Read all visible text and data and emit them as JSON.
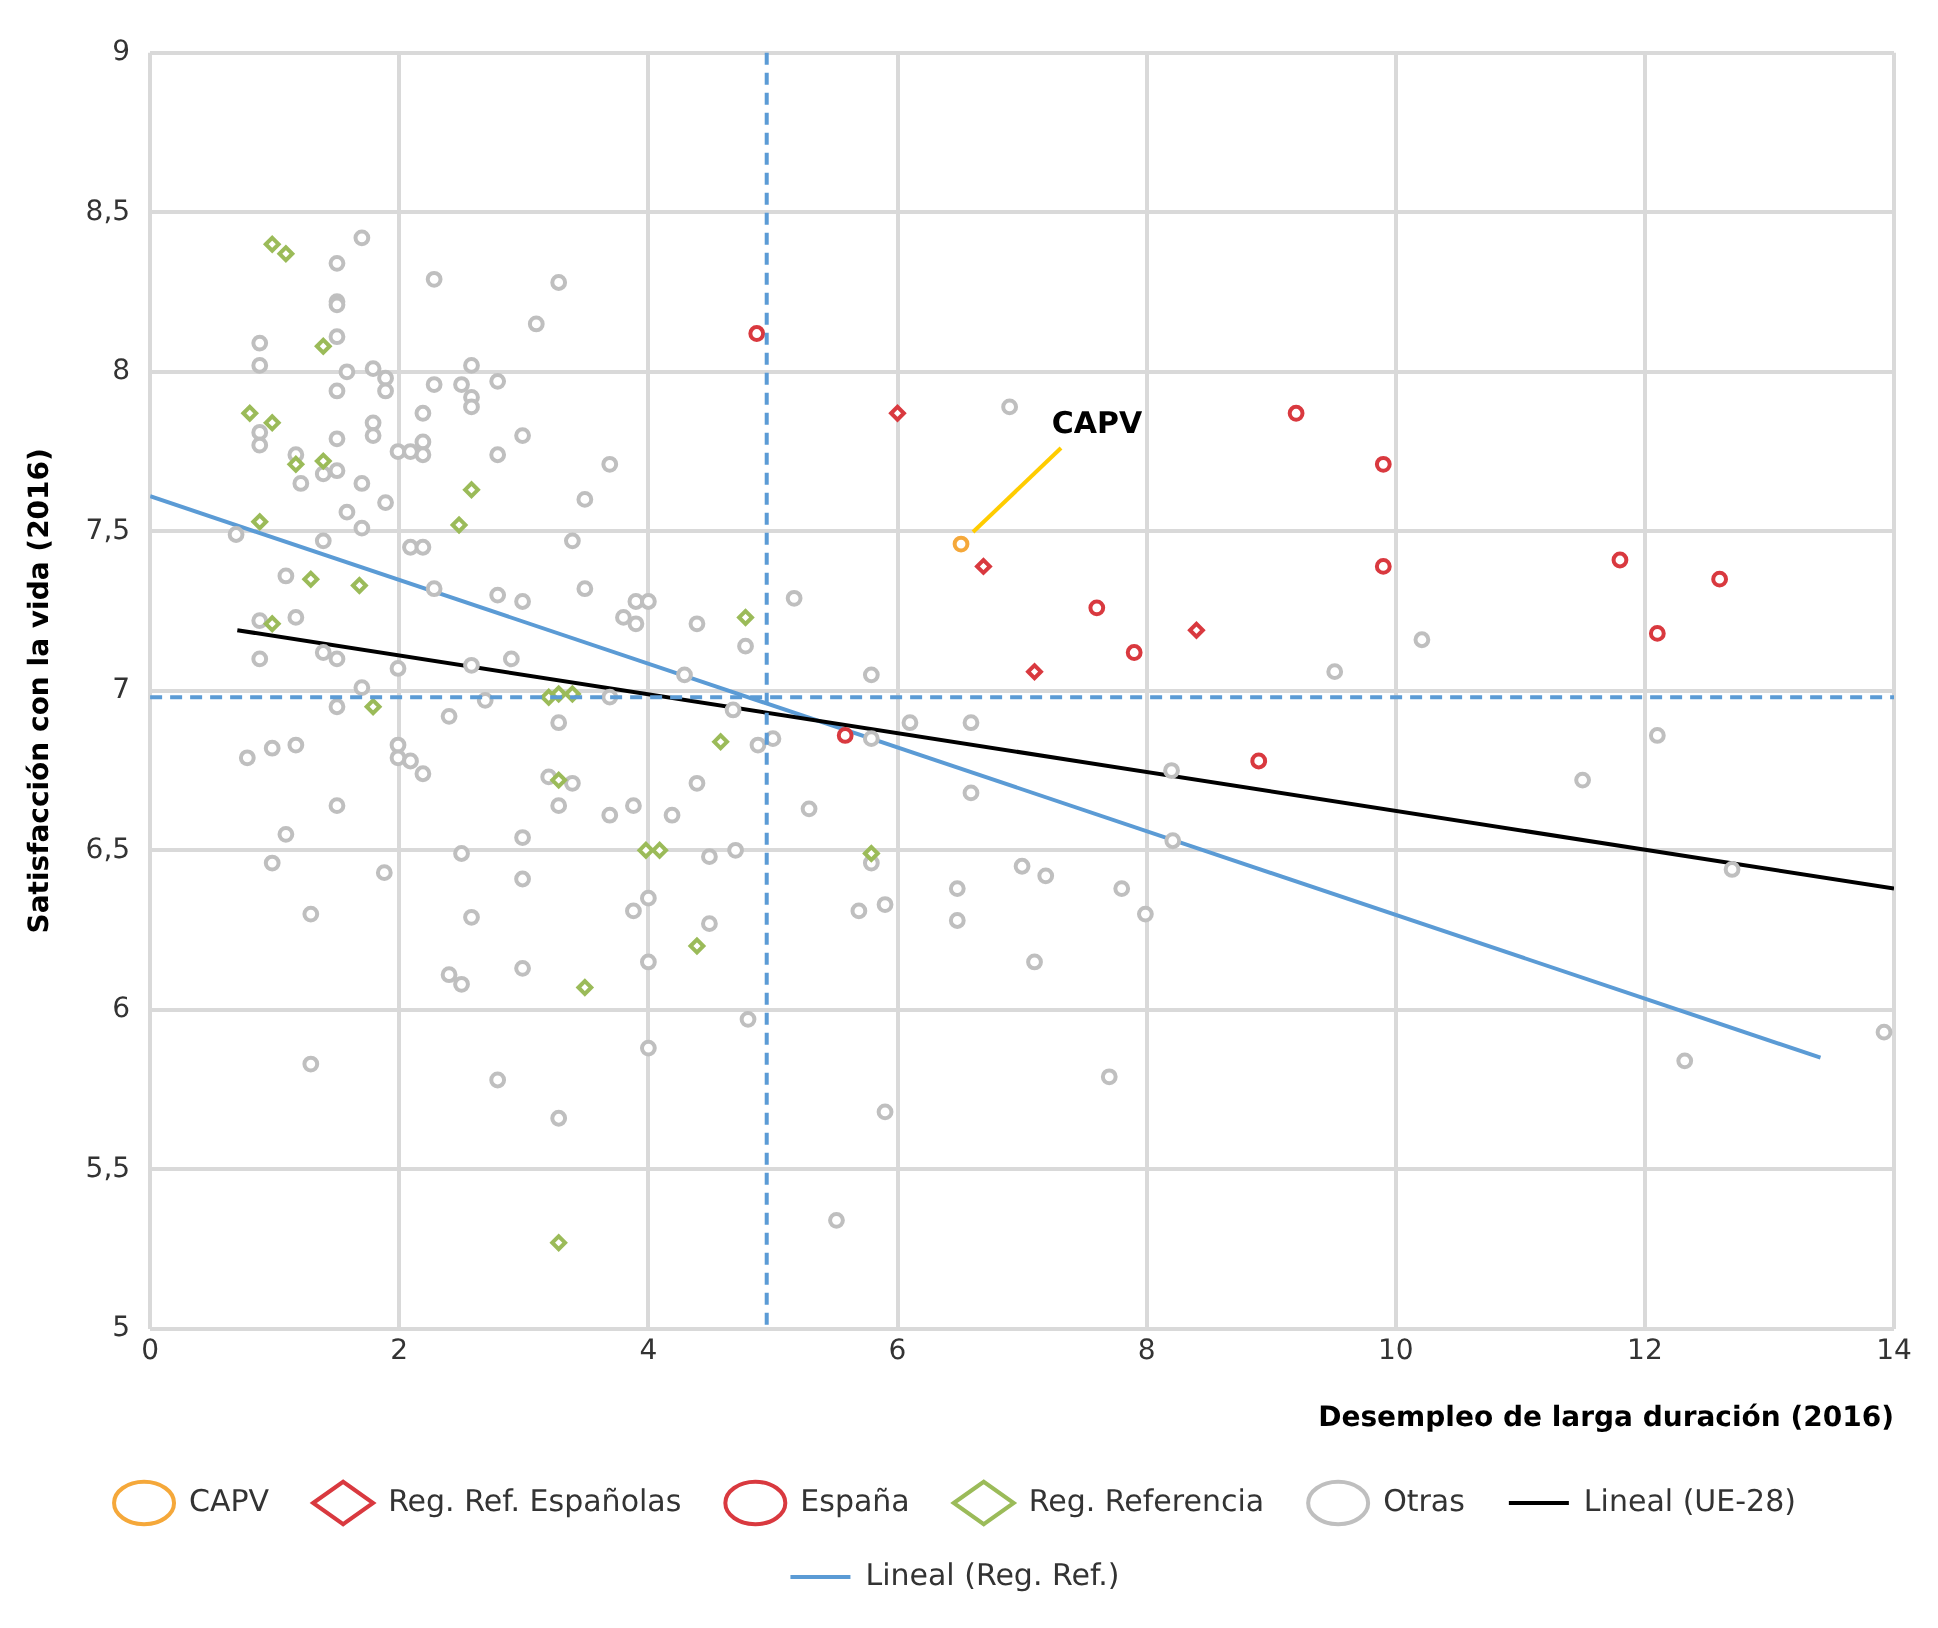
{
  "chart_data": {
    "type": "scatter",
    "xlabel": "Desempleo de larga duración (2016)",
    "ylabel": "Satisfacción con la vida (2016)",
    "xlim": [
      0,
      14
    ],
    "xticks": [
      0,
      2,
      4,
      6,
      8,
      10,
      12,
      14
    ],
    "ylim": [
      5,
      9
    ],
    "yticks": [
      5,
      {
        "value": 5.5,
        "label": "5,5"
      },
      6,
      {
        "value": 6.5,
        "label": "6,5"
      },
      7,
      {
        "value": 7.5,
        "label": "7,5"
      },
      8,
      {
        "value": 8.5,
        "label": "8,5"
      },
      9
    ],
    "grid": true,
    "legend": "bottom",
    "ref_lines": [
      {
        "axis": "x",
        "value": 4.95,
        "color": "#5b9bd5",
        "line_style": "dashed"
      },
      {
        "axis": "y",
        "value": 6.98,
        "color": "#5b9bd5",
        "line_style": "dashed"
      }
    ],
    "annotations": [
      {
        "text": "CAPV",
        "x": 6.51,
        "y": 7.46
      }
    ],
    "series": [
      {
        "name": "CAPV",
        "color": "#f5a83a",
        "marker": "circle",
        "x": [
          6.51
        ],
        "values": [
          7.46
        ]
      },
      {
        "name": "Reg. Ref. Españolas",
        "color": "#d9393f",
        "marker": "diamond",
        "x": [
          6.0,
          6.69,
          7.1,
          8.4
        ],
        "values": [
          7.87,
          7.39,
          7.06,
          7.19
        ]
      },
      {
        "name": "España",
        "color": "#d9393f",
        "marker": "circle",
        "x": [
          4.87,
          9.2,
          9.9,
          9.9,
          7.6,
          7.9,
          5.58,
          8.9,
          11.8,
          12.1,
          12.6
        ],
        "values": [
          8.12,
          7.87,
          7.71,
          7.39,
          7.26,
          7.12,
          6.86,
          6.78,
          7.41,
          7.18,
          7.35
        ]
      },
      {
        "name": "Reg. Referencia",
        "color": "#9bbb59",
        "marker": "diamond",
        "x": [
          0.98,
          1.09,
          1.39,
          0.8,
          0.98,
          1.17,
          1.39,
          2.58,
          0.88,
          2.48,
          1.29,
          1.68,
          0.98,
          4.78,
          1.79,
          3.2,
          3.28,
          3.39,
          4.58,
          3.28,
          3.98,
          4.09,
          4.39,
          3.49,
          3.28,
          5.79
        ],
        "values": [
          8.4,
          8.37,
          8.08,
          7.87,
          7.84,
          7.71,
          7.72,
          7.63,
          7.53,
          7.52,
          7.35,
          7.33,
          7.21,
          7.23,
          6.95,
          6.98,
          6.99,
          6.99,
          6.84,
          6.72,
          6.5,
          6.5,
          6.2,
          6.07,
          5.27,
          6.49
        ]
      },
      {
        "name": "Otras",
        "color": "#bfbfbf",
        "marker": "circle",
        "x": [
          1.7,
          1.5,
          2.28,
          3.28,
          1.5,
          1.5,
          3.1,
          0.88,
          1.5,
          0.88,
          1.58,
          1.79,
          1.89,
          1.89,
          2.58,
          2.5,
          2.28,
          2.79,
          2.58,
          2.58,
          1.5,
          2.19,
          1.79,
          1.79,
          0.88,
          0.88,
          1.5,
          2.19,
          2.19,
          1.99,
          2.09,
          2.99,
          2.79,
          1.17,
          1.21,
          1.39,
          1.5,
          1.7,
          3.69,
          3.49,
          1.89,
          1.58,
          1.7,
          0.69,
          1.39,
          3.39,
          2.09,
          2.19,
          1.09,
          2.28,
          3.49,
          2.79,
          2.99,
          5.17,
          3.8,
          3.9,
          4.0,
          3.9,
          4.39,
          1.17,
          0.88,
          0.88,
          1.39,
          1.5,
          1.99,
          2.58,
          2.9,
          4.29,
          4.78,
          1.7,
          2.69,
          3.69,
          1.5,
          2.4,
          3.28,
          4.68,
          4.88,
          5.0,
          0.78,
          0.98,
          1.17,
          1.99,
          1.99,
          2.09,
          2.19,
          3.2,
          3.39,
          3.28,
          3.88,
          3.69,
          4.19,
          4.39,
          1.5,
          1.09,
          2.99,
          2.5,
          4.49,
          4.7,
          0.98,
          1.88,
          2.99,
          3.88,
          4.0,
          4.49,
          1.29,
          2.58,
          2.4,
          2.5,
          2.99,
          4.0,
          4.8,
          4.0,
          1.29,
          2.79,
          3.28,
          6.9,
          5.79,
          9.51,
          6.1,
          6.59,
          5.79,
          8.2,
          5.29,
          6.59,
          5.79,
          8.21,
          7.0,
          7.19,
          6.48,
          7.8,
          5.69,
          5.9,
          6.48,
          7.99,
          7.1,
          7.7,
          5.9,
          10.21,
          12.1,
          11.5,
          12.7,
          12.32,
          13.92,
          5.51
        ],
        "values": [
          8.42,
          8.34,
          8.29,
          8.28,
          8.22,
          8.21,
          8.15,
          8.09,
          8.11,
          8.02,
          8.0,
          8.01,
          7.98,
          7.94,
          8.02,
          7.96,
          7.96,
          7.97,
          7.92,
          7.89,
          7.94,
          7.87,
          7.84,
          7.8,
          7.81,
          7.77,
          7.79,
          7.78,
          7.74,
          7.75,
          7.75,
          7.8,
          7.74,
          7.74,
          7.65,
          7.68,
          7.69,
          7.65,
          7.71,
          7.6,
          7.59,
          7.56,
          7.51,
          7.49,
          7.47,
          7.47,
          7.45,
          7.45,
          7.36,
          7.32,
          7.32,
          7.3,
          7.28,
          7.29,
          7.23,
          7.28,
          7.28,
          7.21,
          7.21,
          7.23,
          7.22,
          7.1,
          7.12,
          7.1,
          7.07,
          7.08,
          7.1,
          7.05,
          7.14,
          7.01,
          6.97,
          6.98,
          6.95,
          6.92,
          6.9,
          6.94,
          6.83,
          6.85,
          6.79,
          6.82,
          6.83,
          6.83,
          6.79,
          6.78,
          6.74,
          6.73,
          6.71,
          6.64,
          6.64,
          6.61,
          6.61,
          6.71,
          6.64,
          6.55,
          6.54,
          6.49,
          6.48,
          6.5,
          6.46,
          6.43,
          6.41,
          6.31,
          6.35,
          6.27,
          6.3,
          6.29,
          6.11,
          6.08,
          6.13,
          6.15,
          5.97,
          5.88,
          5.83,
          5.78,
          5.66,
          7.89,
          7.05,
          7.06,
          6.9,
          6.9,
          6.85,
          6.75,
          6.63,
          6.68,
          6.46,
          6.53,
          6.45,
          6.42,
          6.38,
          6.38,
          6.31,
          6.33,
          6.28,
          6.3,
          6.15,
          5.79,
          5.68,
          7.16,
          6.86,
          6.72,
          6.44,
          5.84,
          5.93,
          5.34
        ]
      },
      {
        "name": "Lineal (UE-28)",
        "type": "line",
        "color": "#000000",
        "marker": "none",
        "x": [
          0.7,
          14
        ],
        "values": [
          7.19,
          6.38
        ]
      },
      {
        "name": "Lineal (Reg. Ref.)",
        "type": "line",
        "color": "#5b9bd5",
        "marker": "none",
        "x": [
          0,
          13.41
        ],
        "values": [
          7.61,
          5.85
        ]
      }
    ]
  }
}
